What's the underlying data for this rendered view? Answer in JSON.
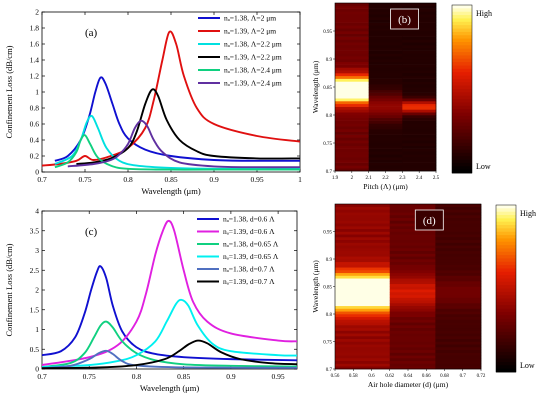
{
  "chart_data": [
    {
      "id": "a",
      "type": "line",
      "panel_label": "(a)",
      "xlabel": "Wavelength (μm)",
      "ylabel": "Confinement Loss (dB/cm)",
      "xlim": [
        0.7,
        1.0
      ],
      "ylim": [
        0,
        2
      ],
      "xticks": [
        0.7,
        0.75,
        0.8,
        0.85,
        0.9,
        0.95,
        1
      ],
      "xtick_labels": [
        "0.7",
        "0.75",
        "0.8",
        "0.85",
        "0.9",
        "0.95",
        "1"
      ],
      "yticks": [
        0,
        0.2,
        0.4,
        0.6,
        0.8,
        1,
        1.2,
        1.4,
        1.6,
        1.8,
        2
      ],
      "ytick_labels": [
        "0",
        "0.2",
        "0.4",
        "0.6",
        "0.8",
        "1",
        "1.2",
        "1.4",
        "1.6",
        "1.8",
        "2"
      ],
      "legend_position": "top-right",
      "series": [
        {
          "name": "nₐ=1.38, Λ=2 μm",
          "color": "#1010d0",
          "x": [
            0.715,
            0.73,
            0.745,
            0.755,
            0.762,
            0.768,
            0.774,
            0.782,
            0.79,
            0.8,
            0.82,
            0.85,
            0.9,
            0.95,
            1.0
          ],
          "y": [
            0.14,
            0.2,
            0.4,
            0.7,
            1.0,
            1.18,
            1.1,
            0.85,
            0.6,
            0.42,
            0.28,
            0.2,
            0.15,
            0.14,
            0.14
          ]
        },
        {
          "name": "nₐ=1.39, Λ=2 μm",
          "color": "#e01010",
          "x": [
            0.7,
            0.72,
            0.74,
            0.75,
            0.76,
            0.78,
            0.8,
            0.82,
            0.83,
            0.84,
            0.848,
            0.856,
            0.865,
            0.88,
            0.9,
            0.95,
            1.0
          ],
          "y": [
            0.08,
            0.1,
            0.14,
            0.2,
            0.15,
            0.2,
            0.3,
            0.55,
            0.9,
            1.4,
            1.75,
            1.6,
            1.2,
            0.8,
            0.6,
            0.45,
            0.38
          ]
        },
        {
          "name": "nₐ=1.38, Λ=2.2 μm",
          "color": "#00e0e0",
          "x": [
            0.715,
            0.735,
            0.745,
            0.752,
            0.758,
            0.765,
            0.775,
            0.79,
            0.81,
            0.85,
            0.9,
            1.0
          ],
          "y": [
            0.1,
            0.2,
            0.4,
            0.62,
            0.7,
            0.55,
            0.3,
            0.14,
            0.08,
            0.05,
            0.04,
            0.04
          ]
        },
        {
          "name": "nₐ=1.39, Λ=2.2 μm",
          "color": "#000000",
          "x": [
            0.74,
            0.76,
            0.78,
            0.8,
            0.81,
            0.82,
            0.828,
            0.835,
            0.845,
            0.86,
            0.88,
            0.9,
            0.95,
            1.0
          ],
          "y": [
            0.1,
            0.12,
            0.17,
            0.3,
            0.5,
            0.85,
            1.03,
            0.95,
            0.65,
            0.4,
            0.26,
            0.2,
            0.17,
            0.17
          ]
        },
        {
          "name": "nₐ=1.38, Λ=2.4 μm",
          "color": "#10d080",
          "x": [
            0.715,
            0.73,
            0.74,
            0.745,
            0.75,
            0.756,
            0.765,
            0.78,
            0.8,
            0.85,
            0.9,
            1.0
          ],
          "y": [
            0.06,
            0.12,
            0.25,
            0.4,
            0.46,
            0.35,
            0.18,
            0.08,
            0.04,
            0.03,
            0.03,
            0.03
          ]
        },
        {
          "name": "nₐ=1.39, Λ=2.4 μm",
          "color": "#6030a0",
          "x": [
            0.73,
            0.76,
            0.78,
            0.79,
            0.8,
            0.808,
            0.815,
            0.822,
            0.83,
            0.84,
            0.86,
            0.9,
            0.95,
            1.0
          ],
          "y": [
            0.07,
            0.1,
            0.15,
            0.22,
            0.35,
            0.55,
            0.64,
            0.58,
            0.4,
            0.25,
            0.12,
            0.07,
            0.06,
            0.06
          ]
        }
      ]
    },
    {
      "id": "b",
      "type": "heatmap",
      "panel_label": "(b)",
      "xlabel": "Pitch (Λ) (μm)",
      "ylabel": "Wavelength (μm)",
      "xlim": [
        1.9,
        2.5
      ],
      "ylim": [
        0.7,
        1.0
      ],
      "xticks": [
        1.9,
        2,
        2.1,
        2.2,
        2.3,
        2.4,
        2.5
      ],
      "xtick_labels": [
        "1.9",
        "2",
        "2.1",
        "2.2",
        "2.3",
        "2.4",
        "2.5"
      ],
      "yticks": [
        0.7,
        0.75,
        0.8,
        0.85,
        0.9,
        0.95
      ],
      "ytick_labels": [
        "0.7",
        "0.75",
        "0.8",
        "0.85",
        "0.9",
        "0.95"
      ],
      "colorbar": {
        "high_label": "High",
        "low_label": "Low"
      },
      "columns": [
        {
          "x0": 1.9,
          "x1": 2.1,
          "peak": 0.845,
          "amp": 1.0,
          "width": 0.025,
          "base": 0.32
        },
        {
          "x0": 2.1,
          "x1": 2.3,
          "peak": 0.815,
          "amp": 0.3,
          "width": 0.025,
          "base": 0.1
        },
        {
          "x0": 2.3,
          "x1": 2.5,
          "peak": 0.815,
          "amp": 0.55,
          "width": 0.012,
          "base": 0.1
        }
      ]
    },
    {
      "id": "c",
      "type": "line",
      "panel_label": "(c)",
      "xlabel": "Wavelength (μm)",
      "ylabel": "Confinement Loss (dB/cm)",
      "xlim": [
        0.7,
        0.97
      ],
      "ylim": [
        0,
        4
      ],
      "xticks": [
        0.7,
        0.75,
        0.8,
        0.85,
        0.9,
        0.95
      ],
      "xtick_labels": [
        "0.7",
        "0.75",
        "0.8",
        "0.85",
        "0.9",
        "0.95"
      ],
      "yticks": [
        0,
        0.5,
        1,
        1.5,
        2,
        2.5,
        3,
        3.5,
        4
      ],
      "ytick_labels": [
        "0",
        "0.5",
        "1",
        "1.5",
        "2",
        "2.5",
        "3",
        "3.5",
        "4"
      ],
      "legend_position": "top-right",
      "series": [
        {
          "name": "nₐ=1.38, d=0.6 Λ",
          "color": "#1010d0",
          "x": [
            0.7,
            0.72,
            0.735,
            0.745,
            0.752,
            0.758,
            0.762,
            0.768,
            0.775,
            0.785,
            0.8,
            0.82,
            0.85,
            0.9,
            0.97
          ],
          "y": [
            0.35,
            0.45,
            0.8,
            1.4,
            2.0,
            2.45,
            2.6,
            2.3,
            1.6,
            0.95,
            0.55,
            0.38,
            0.3,
            0.25,
            0.22
          ]
        },
        {
          "name": "nₐ=1.39, d=0.6 Λ",
          "color": "#e020e0",
          "x": [
            0.7,
            0.75,
            0.78,
            0.8,
            0.81,
            0.82,
            0.828,
            0.834,
            0.84,
            0.85,
            0.86,
            0.875,
            0.9,
            0.95,
            0.97
          ],
          "y": [
            0.1,
            0.3,
            0.6,
            1.2,
            1.9,
            2.9,
            3.5,
            3.75,
            3.5,
            2.5,
            1.7,
            1.2,
            0.9,
            0.72,
            0.7
          ]
        },
        {
          "name": "nₐ=1.38, d=0.65 Λ",
          "color": "#10d080",
          "x": [
            0.7,
            0.73,
            0.745,
            0.755,
            0.762,
            0.768,
            0.775,
            0.785,
            0.8,
            0.82,
            0.85,
            0.9,
            0.97
          ],
          "y": [
            0.05,
            0.15,
            0.4,
            0.8,
            1.1,
            1.2,
            1.05,
            0.7,
            0.4,
            0.22,
            0.12,
            0.08,
            0.06
          ]
        },
        {
          "name": "nₐ=1.39, d=0.65 Λ",
          "color": "#00f0f0",
          "x": [
            0.7,
            0.75,
            0.78,
            0.8,
            0.82,
            0.832,
            0.842,
            0.848,
            0.855,
            0.865,
            0.88,
            0.9,
            0.95,
            0.97
          ],
          "y": [
            0.05,
            0.1,
            0.2,
            0.35,
            0.7,
            1.2,
            1.65,
            1.75,
            1.6,
            1.1,
            0.65,
            0.45,
            0.35,
            0.34
          ]
        },
        {
          "name": "nₐ=1.38, d=0.7 Λ",
          "color": "#5070c0",
          "x": [
            0.7,
            0.73,
            0.75,
            0.76,
            0.768,
            0.775,
            0.785,
            0.8,
            0.85,
            0.97
          ],
          "y": [
            0.02,
            0.08,
            0.25,
            0.4,
            0.46,
            0.38,
            0.2,
            0.09,
            0.04,
            0.03
          ]
        },
        {
          "name": "nₐ=1.39, d=0.7 Λ",
          "color": "#000000",
          "x": [
            0.7,
            0.76,
            0.8,
            0.83,
            0.845,
            0.855,
            0.865,
            0.875,
            0.89,
            0.91,
            0.94,
            0.97
          ],
          "y": [
            0.02,
            0.04,
            0.1,
            0.25,
            0.45,
            0.62,
            0.72,
            0.65,
            0.42,
            0.25,
            0.15,
            0.12
          ]
        }
      ]
    },
    {
      "id": "d",
      "type": "heatmap",
      "panel_label": "(d)",
      "xlabel": "Air hole diameter (d) (μm)",
      "ylabel": "Wavelength (μm)",
      "xlim": [
        0.56,
        0.72
      ],
      "ylim": [
        0.7,
        1.0
      ],
      "xticks": [
        0.56,
        0.58,
        0.6,
        0.62,
        0.64,
        0.66,
        0.68,
        0.7,
        0.72
      ],
      "xtick_labels": [
        "0.56",
        "0.58",
        "0.6",
        "0.62",
        "0.64",
        "0.66",
        "0.68",
        "0.7",
        "0.72"
      ],
      "yticks": [
        0.7,
        0.75,
        0.8,
        0.85,
        0.9,
        0.95
      ],
      "ytick_labels": [
        "0.7",
        "0.75",
        "0.8",
        "0.85",
        "0.9",
        "0.95"
      ],
      "colorbar": {
        "high_label": "High",
        "low_label": "Low"
      },
      "columns": [
        {
          "x0": 0.56,
          "x1": 0.62,
          "peak": 0.84,
          "amp": 0.95,
          "width": 0.035,
          "base": 0.42
        },
        {
          "x0": 0.62,
          "x1": 0.67,
          "peak": 0.84,
          "amp": 0.28,
          "width": 0.03,
          "base": 0.3
        },
        {
          "x0": 0.67,
          "x1": 0.72,
          "peak": 0.84,
          "amp": 0.12,
          "width": 0.03,
          "base": 0.2
        }
      ]
    }
  ]
}
